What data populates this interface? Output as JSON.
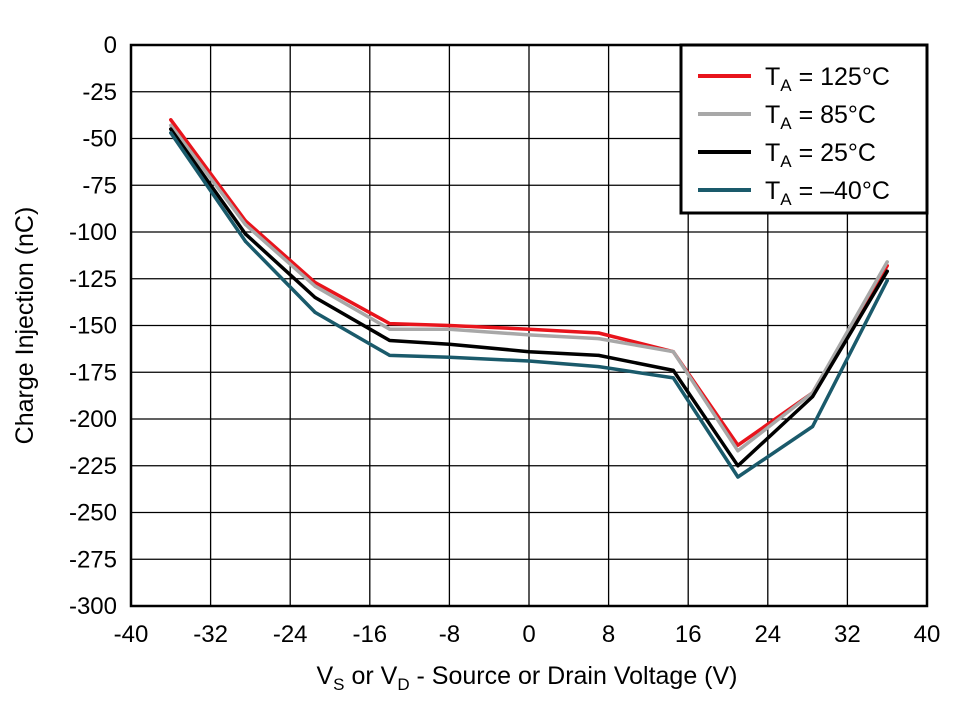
{
  "chart_data": {
    "type": "line",
    "title": "",
    "xlabel": {
      "v1": "V",
      "v1_sub": "S",
      "middle": " or V",
      "v2_sub": "D",
      "rest": " - Source or Drain Voltage (V)"
    },
    "ylabel": "Charge Injection (nC)",
    "xlim": [
      -40,
      40
    ],
    "ylim": [
      -300,
      0
    ],
    "xticks": [
      -40,
      -32,
      -24,
      -16,
      -8,
      0,
      8,
      16,
      24,
      32,
      40
    ],
    "xtick_labels": [
      "-40",
      "-32",
      "-24",
      "-16",
      "-8",
      "0",
      "8",
      "16",
      "24",
      "32",
      "40"
    ],
    "yticks": [
      0,
      -25,
      -50,
      -75,
      -100,
      -125,
      -150,
      -175,
      -200,
      -225,
      -250,
      -275,
      -300
    ],
    "ytick_labels": [
      "0",
      "-25",
      "-50",
      "-75",
      "-100",
      "-125",
      "-150",
      "-175",
      "-200",
      "-225",
      "-250",
      "-275",
      "-300"
    ],
    "grid": true,
    "legend_position": "top-right",
    "series": [
      {
        "name": "T_A = 125°C",
        "label_main": "T",
        "label_sub": "A",
        "label_rest": " = 125°C",
        "color": "#e8141c",
        "x": [
          -36,
          -28.5,
          -21.5,
          -14,
          -8,
          0,
          7,
          14.5,
          21,
          28.5,
          36
        ],
        "y": [
          -40,
          -94,
          -127,
          -149,
          -150,
          -152,
          -154,
          -164,
          -214,
          -186,
          -118
        ]
      },
      {
        "name": "T_A = 85°C",
        "label_main": "T",
        "label_sub": "A",
        "label_rest": " = 85°C",
        "color": "#a8a8a8",
        "x": [
          -36,
          -28.5,
          -21.5,
          -14,
          -8,
          0,
          7,
          14.5,
          21,
          28.5,
          36
        ],
        "y": [
          -43,
          -96,
          -129,
          -152,
          -152,
          -155,
          -157,
          -164,
          -217,
          -186,
          -116
        ]
      },
      {
        "name": "T_A = 25°C",
        "label_main": "T",
        "label_sub": "A",
        "label_rest": " = 25°C",
        "color": "#000000",
        "x": [
          -36,
          -28.5,
          -21.5,
          -14,
          -8,
          0,
          7,
          14.5,
          21,
          28.5,
          36
        ],
        "y": [
          -45,
          -101,
          -135,
          -158,
          -160,
          -164,
          -166,
          -174,
          -225,
          -188,
          -121
        ]
      },
      {
        "name": "T_A = –40°C",
        "label_main": "T",
        "label_sub": "A",
        "label_rest": " = –40°C",
        "color": "#1a5a6b",
        "x": [
          -36,
          -28.5,
          -21.5,
          -14,
          -8,
          0,
          7,
          14.5,
          21,
          28.5,
          36
        ],
        "y": [
          -47,
          -105,
          -143,
          -166,
          -167,
          -169,
          -172,
          -178,
          -231,
          -204,
          -126
        ]
      }
    ]
  }
}
